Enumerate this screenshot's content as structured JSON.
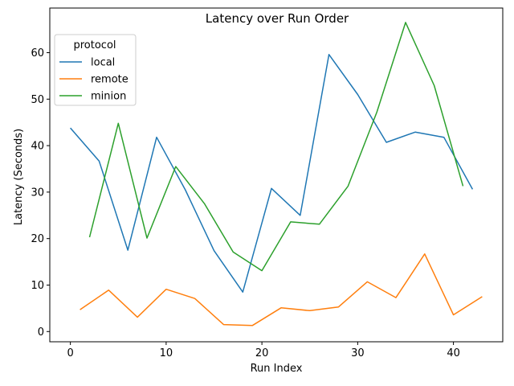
{
  "chart_data": {
    "type": "line",
    "title": "Latency over Run Order",
    "xlabel": "Run Index",
    "ylabel": "Latency (Seconds)",
    "xlim": [
      -2.15,
      45.15
    ],
    "ylim": [
      -2.2,
      69.6
    ],
    "xticks": [
      0,
      10,
      20,
      30,
      40
    ],
    "yticks": [
      0,
      10,
      20,
      30,
      40,
      50,
      60
    ],
    "grid": false,
    "legend": {
      "title": "protocol",
      "position": "top-left"
    },
    "series": [
      {
        "name": "local",
        "color": "#1f77b4",
        "x": [
          0,
          3,
          6,
          9,
          12,
          15,
          18,
          21,
          24,
          27,
          30,
          33,
          36,
          39,
          42
        ],
        "y": [
          43.8,
          36.7,
          17.5,
          41.8,
          30.5,
          17.4,
          8.5,
          30.8,
          25.0,
          59.6,
          51.0,
          40.7,
          42.9,
          41.8,
          30.6
        ]
      },
      {
        "name": "remote",
        "color": "#ff7f0e",
        "x": [
          1,
          4,
          7,
          10,
          13,
          16,
          19,
          22,
          25,
          28,
          31,
          34,
          37,
          40,
          43
        ],
        "y": [
          4.7,
          8.9,
          3.1,
          9.1,
          7.1,
          1.5,
          1.3,
          5.1,
          4.5,
          5.3,
          10.7,
          7.3,
          16.7,
          3.6,
          7.5
        ]
      },
      {
        "name": "minion",
        "color": "#2ca02c",
        "x": [
          2,
          5,
          8,
          11,
          14,
          17,
          20,
          23,
          26,
          29,
          32,
          35,
          38,
          41
        ],
        "y": [
          20.3,
          44.8,
          20.1,
          35.5,
          27.5,
          17.1,
          13.1,
          23.6,
          23.1,
          31.3,
          47.2,
          66.5,
          52.9,
          31.3
        ]
      }
    ]
  }
}
